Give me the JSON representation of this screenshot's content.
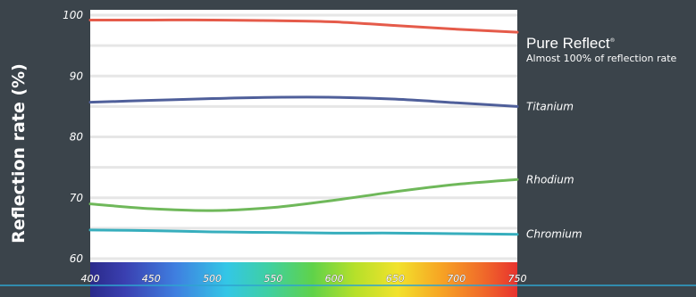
{
  "chart_data": {
    "type": "line",
    "ylabel": "Reflection rate (%)",
    "ylim": [
      60,
      100
    ],
    "yticks": [
      "100",
      "90",
      "80",
      "70",
      "60"
    ],
    "xlim": [
      400,
      750
    ],
    "xticks": [
      "400",
      "450",
      "500",
      "550",
      "600",
      "650",
      "700",
      "750"
    ],
    "grid": true,
    "x": [
      400,
      450,
      500,
      550,
      600,
      650,
      700,
      750
    ],
    "series": [
      {
        "name": "Pure Reflect",
        "color": "#e55b4a",
        "values": [
          99.2,
          99.2,
          99.2,
          99.1,
          98.9,
          98.3,
          97.7,
          97.2
        ]
      },
      {
        "name": "Titanium",
        "color": "#4f5f9a",
        "values": [
          85.7,
          86.0,
          86.3,
          86.5,
          86.5,
          86.2,
          85.6,
          85.0
        ]
      },
      {
        "name": "Rhodium",
        "color": "#6fb85a",
        "values": [
          69.0,
          68.2,
          67.9,
          68.4,
          69.6,
          71.0,
          72.2,
          73.0
        ]
      },
      {
        "name": "Chromium",
        "color": "#37aebd",
        "values": [
          64.7,
          64.6,
          64.4,
          64.3,
          64.2,
          64.2,
          64.1,
          64.0
        ]
      }
    ],
    "annotations": {
      "pure_reflect_brand": "Pure Reflect",
      "pure_reflect_mark": "®",
      "pure_reflect_note": "Almost 100% of reflection rate"
    }
  },
  "colors": {
    "background": "#3b444b",
    "plot_background": "#ffffff",
    "grid": "#e6e6e6",
    "baseline": "#2ea3cf"
  }
}
